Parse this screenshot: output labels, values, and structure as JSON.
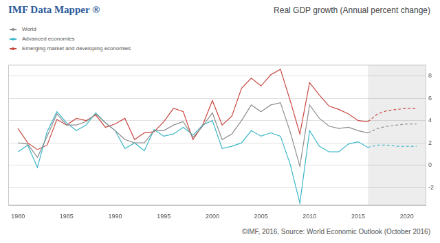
{
  "chart_data": {
    "type": "line",
    "header": "IMF Data Mapper ®",
    "title": "Real GDP growth (Annual percent change)",
    "source": "©IMF, 2016, Source: World Economic Outlook (October 2016)",
    "x": [
      1980,
      1981,
      1982,
      1983,
      1984,
      1985,
      1986,
      1987,
      1988,
      1989,
      1990,
      1991,
      1992,
      1993,
      1994,
      1995,
      1996,
      1997,
      1998,
      1999,
      2000,
      2001,
      2002,
      2003,
      2004,
      2005,
      2006,
      2007,
      2008,
      2009,
      2010,
      2011,
      2012,
      2013,
      2014,
      2015,
      2016,
      2017,
      2018,
      2019,
      2020,
      2021
    ],
    "series": [
      {
        "name": "World",
        "color": "#8c8c8c",
        "values": [
          2.0,
          1.9,
          0.7,
          2.6,
          4.6,
          3.6,
          3.6,
          3.9,
          4.6,
          3.8,
          3.1,
          2.3,
          2.0,
          2.0,
          3.1,
          3.1,
          3.6,
          3.9,
          2.5,
          3.5,
          4.7,
          2.3,
          2.8,
          4.0,
          5.4,
          4.8,
          5.4,
          5.6,
          3.0,
          -0.1,
          5.4,
          4.2,
          3.5,
          3.3,
          3.4,
          3.1,
          2.9,
          3.3,
          3.5,
          3.6,
          3.7,
          3.7
        ]
      },
      {
        "name": "Advanced economies",
        "color": "#3db7c9",
        "values": [
          1.2,
          1.8,
          -0.2,
          3.0,
          4.8,
          3.8,
          3.1,
          3.6,
          4.7,
          3.8,
          3.1,
          1.5,
          2.0,
          1.3,
          3.2,
          2.6,
          2.8,
          3.4,
          2.7,
          3.6,
          4.0,
          1.5,
          1.7,
          2.0,
          3.1,
          2.6,
          2.9,
          2.6,
          0.1,
          -3.4,
          3.1,
          1.7,
          1.2,
          1.2,
          1.9,
          2.1,
          1.6,
          1.8,
          1.8,
          1.7,
          1.7,
          1.7
        ]
      },
      {
        "name": "Emerging market and developing economies",
        "color": "#c9463f",
        "values": [
          3.3,
          2.0,
          1.4,
          1.8,
          4.1,
          3.6,
          4.2,
          4.0,
          4.5,
          3.4,
          3.7,
          4.2,
          2.3,
          2.9,
          3.0,
          3.9,
          5.1,
          4.8,
          2.3,
          3.6,
          5.8,
          3.6,
          4.4,
          6.9,
          7.8,
          7.1,
          8.1,
          8.6,
          5.8,
          2.8,
          7.4,
          6.3,
          5.3,
          5.0,
          4.6,
          4.0,
          3.9,
          4.6,
          4.9,
          5.0,
          5.1,
          5.1
        ]
      }
    ],
    "xlim": [
      1979,
      2022
    ],
    "xticks": [
      1980,
      1985,
      1990,
      1995,
      2000,
      2005,
      2010,
      2015,
      2020
    ],
    "ylim": [
      -3.6,
      9
    ],
    "yticks": [
      -2,
      0,
      2,
      4,
      6,
      8
    ],
    "projection_from": 2016,
    "grid": true,
    "legend": "top-left"
  }
}
